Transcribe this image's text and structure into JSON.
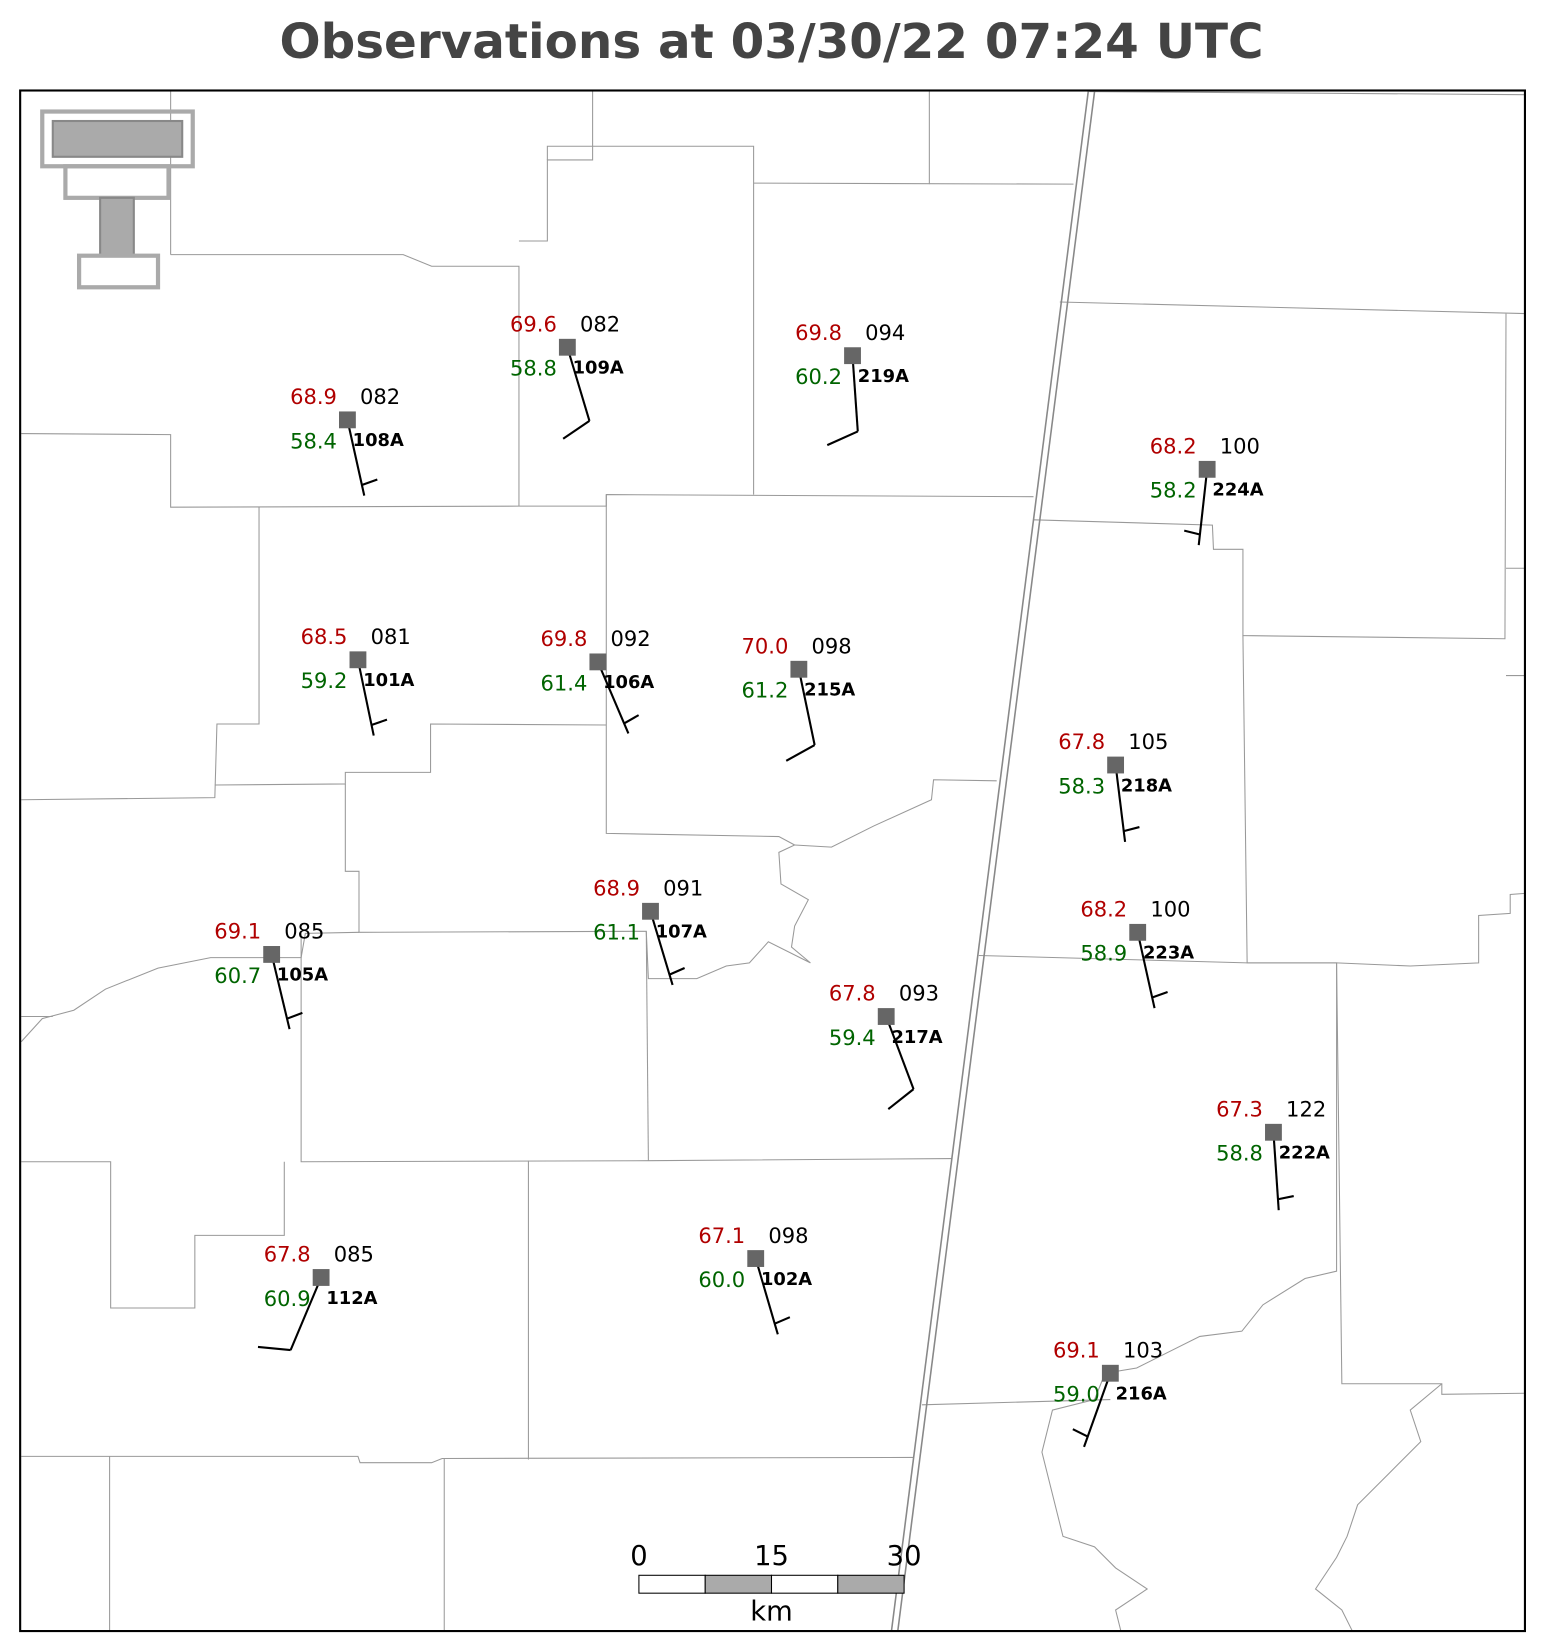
{
  "title": "Observations at 03/30/22 07:24 UTC",
  "stations": [
    {
      "id": "108A",
      "temperature": "68.9",
      "dewpoint": "58.4",
      "pressure": "082"
    },
    {
      "id": "109A",
      "temperature": "69.6",
      "dewpoint": "58.8",
      "pressure": "082"
    },
    {
      "id": "219A",
      "temperature": "69.8",
      "dewpoint": "60.2",
      "pressure": "094"
    },
    {
      "id": "224A",
      "temperature": "68.2",
      "dewpoint": "58.2",
      "pressure": "100"
    },
    {
      "id": "101A",
      "temperature": "68.5",
      "dewpoint": "59.2",
      "pressure": "081"
    },
    {
      "id": "106A",
      "temperature": "69.8",
      "dewpoint": "61.4",
      "pressure": "092"
    },
    {
      "id": "215A",
      "temperature": "70.0",
      "dewpoint": "61.2",
      "pressure": "098"
    },
    {
      "id": "218A",
      "temperature": "67.8",
      "dewpoint": "58.3",
      "pressure": "105"
    },
    {
      "id": "107A",
      "temperature": "68.9",
      "dewpoint": "61.1",
      "pressure": "091"
    },
    {
      "id": "223A",
      "temperature": "68.2",
      "dewpoint": "58.9",
      "pressure": "100"
    },
    {
      "id": "105A",
      "temperature": "69.1",
      "dewpoint": "60.7",
      "pressure": "085"
    },
    {
      "id": "217A",
      "temperature": "67.8",
      "dewpoint": "59.4",
      "pressure": "093"
    },
    {
      "id": "222A",
      "temperature": "67.3",
      "dewpoint": "58.8",
      "pressure": "122"
    },
    {
      "id": "112A",
      "temperature": "67.8",
      "dewpoint": "60.9",
      "pressure": "085"
    },
    {
      "id": "102A",
      "temperature": "67.1",
      "dewpoint": "60.0",
      "pressure": "098"
    },
    {
      "id": "216A",
      "temperature": "69.1",
      "dewpoint": "59.0",
      "pressure": "103"
    }
  ],
  "scale_bar": {
    "labels": [
      "0",
      "15",
      "30"
    ],
    "unit": "km"
  }
}
